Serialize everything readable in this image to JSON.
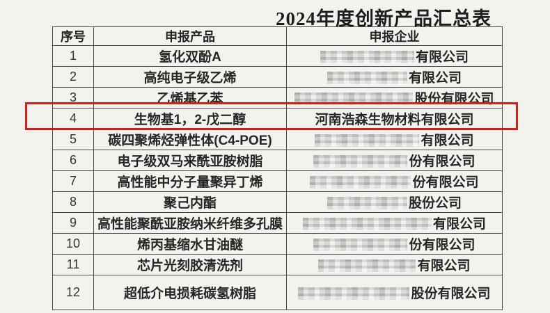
{
  "title": "2024年度创新产品汇总表",
  "colors": {
    "background": "#f3f2ef",
    "table_border": "#474747",
    "text": "#262626",
    "highlight_red": "#ce2217",
    "mosaic_gray": "#c9c9c9"
  },
  "table": {
    "headers": [
      "序号",
      "申报产品",
      "申报企业"
    ],
    "rows": [
      {
        "no": "1",
        "product": "氢化双酚A",
        "company": "有限公司",
        "masked": true
      },
      {
        "no": "2",
        "product": "高纯电子级乙烯",
        "company": "有限公司",
        "masked": true
      },
      {
        "no": "3",
        "product": "乙烯基乙苯",
        "company": "股份有限公司",
        "masked": true
      },
      {
        "no": "4",
        "product": "生物基1，2-戊二醇",
        "company": "河南浩森生物材料有限公司",
        "masked": false,
        "highlighted": true
      },
      {
        "no": "5",
        "product": "碳四聚烯烃弹性体(C4-POE)",
        "company": "有限公司",
        "masked": true
      },
      {
        "no": "6",
        "product": "电子级双马来酰亚胺树脂",
        "company": "份有限公司",
        "masked": true
      },
      {
        "no": "7",
        "product": "高性能中分子量聚异丁烯",
        "company": "份有限公司",
        "masked": true
      },
      {
        "no": "8",
        "product": "聚己内酯",
        "company": "股份公司",
        "masked": true
      },
      {
        "no": "9",
        "product": "高性能聚酰亚胺纳米纤维多孔膜",
        "company": "有限公司",
        "masked": true
      },
      {
        "no": "10",
        "product": "烯丙基缩水甘油醚",
        "company": "份有限公司",
        "masked": true
      },
      {
        "no": "11",
        "product": "芯片光刻胶清洗剂",
        "company": "有限公司",
        "masked": true
      },
      {
        "no": "12",
        "product": "超低介电损耗碳氢树脂",
        "company": "股份有限公司",
        "masked": true
      }
    ]
  }
}
